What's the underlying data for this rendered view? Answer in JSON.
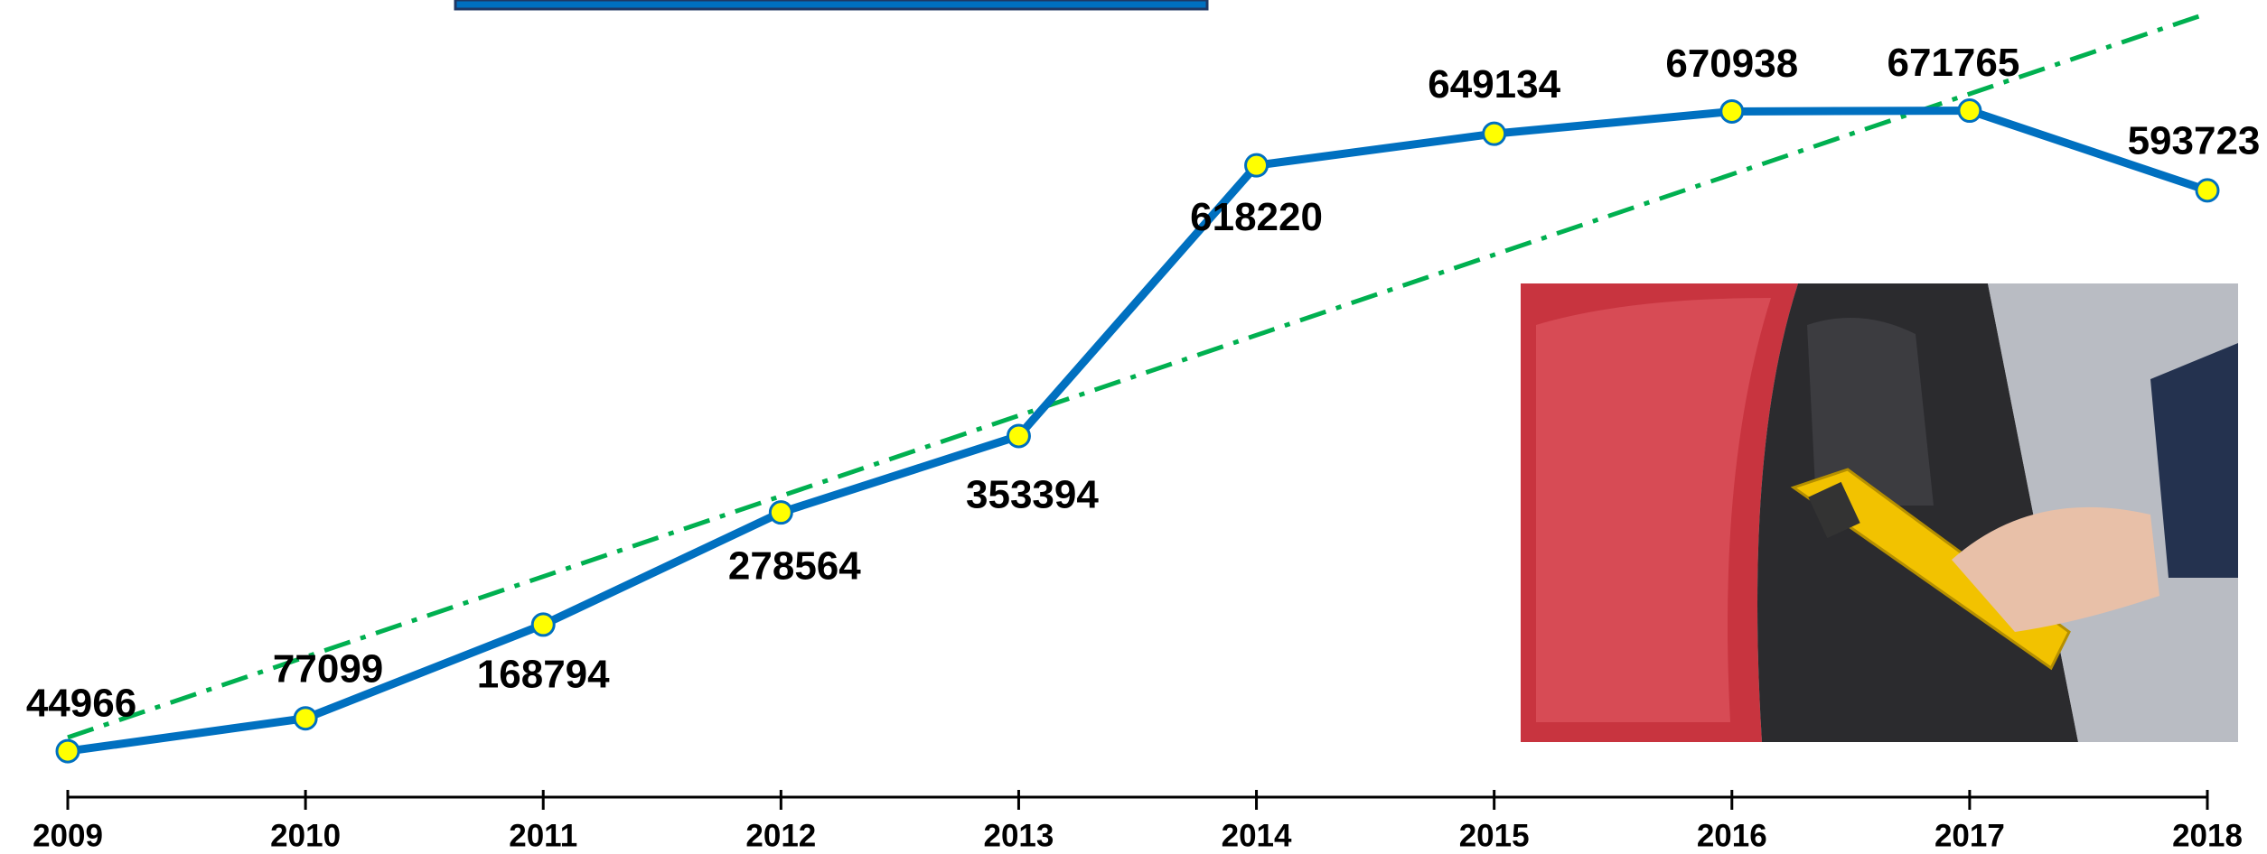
{
  "chart_data": {
    "type": "line",
    "categories": [
      "2009",
      "2010",
      "2011",
      "2012",
      "2013",
      "2014",
      "2015",
      "2016",
      "2017",
      "2018"
    ],
    "values": [
      44966,
      77099,
      168794,
      278564,
      353394,
      618220,
      649134,
      670938,
      671765,
      593723
    ],
    "color": "#0070c0",
    "marker_color": "#ffff00",
    "ylim": [
      0,
      780000
    ],
    "trendline": true,
    "trendline_color": "#00b050"
  }
}
